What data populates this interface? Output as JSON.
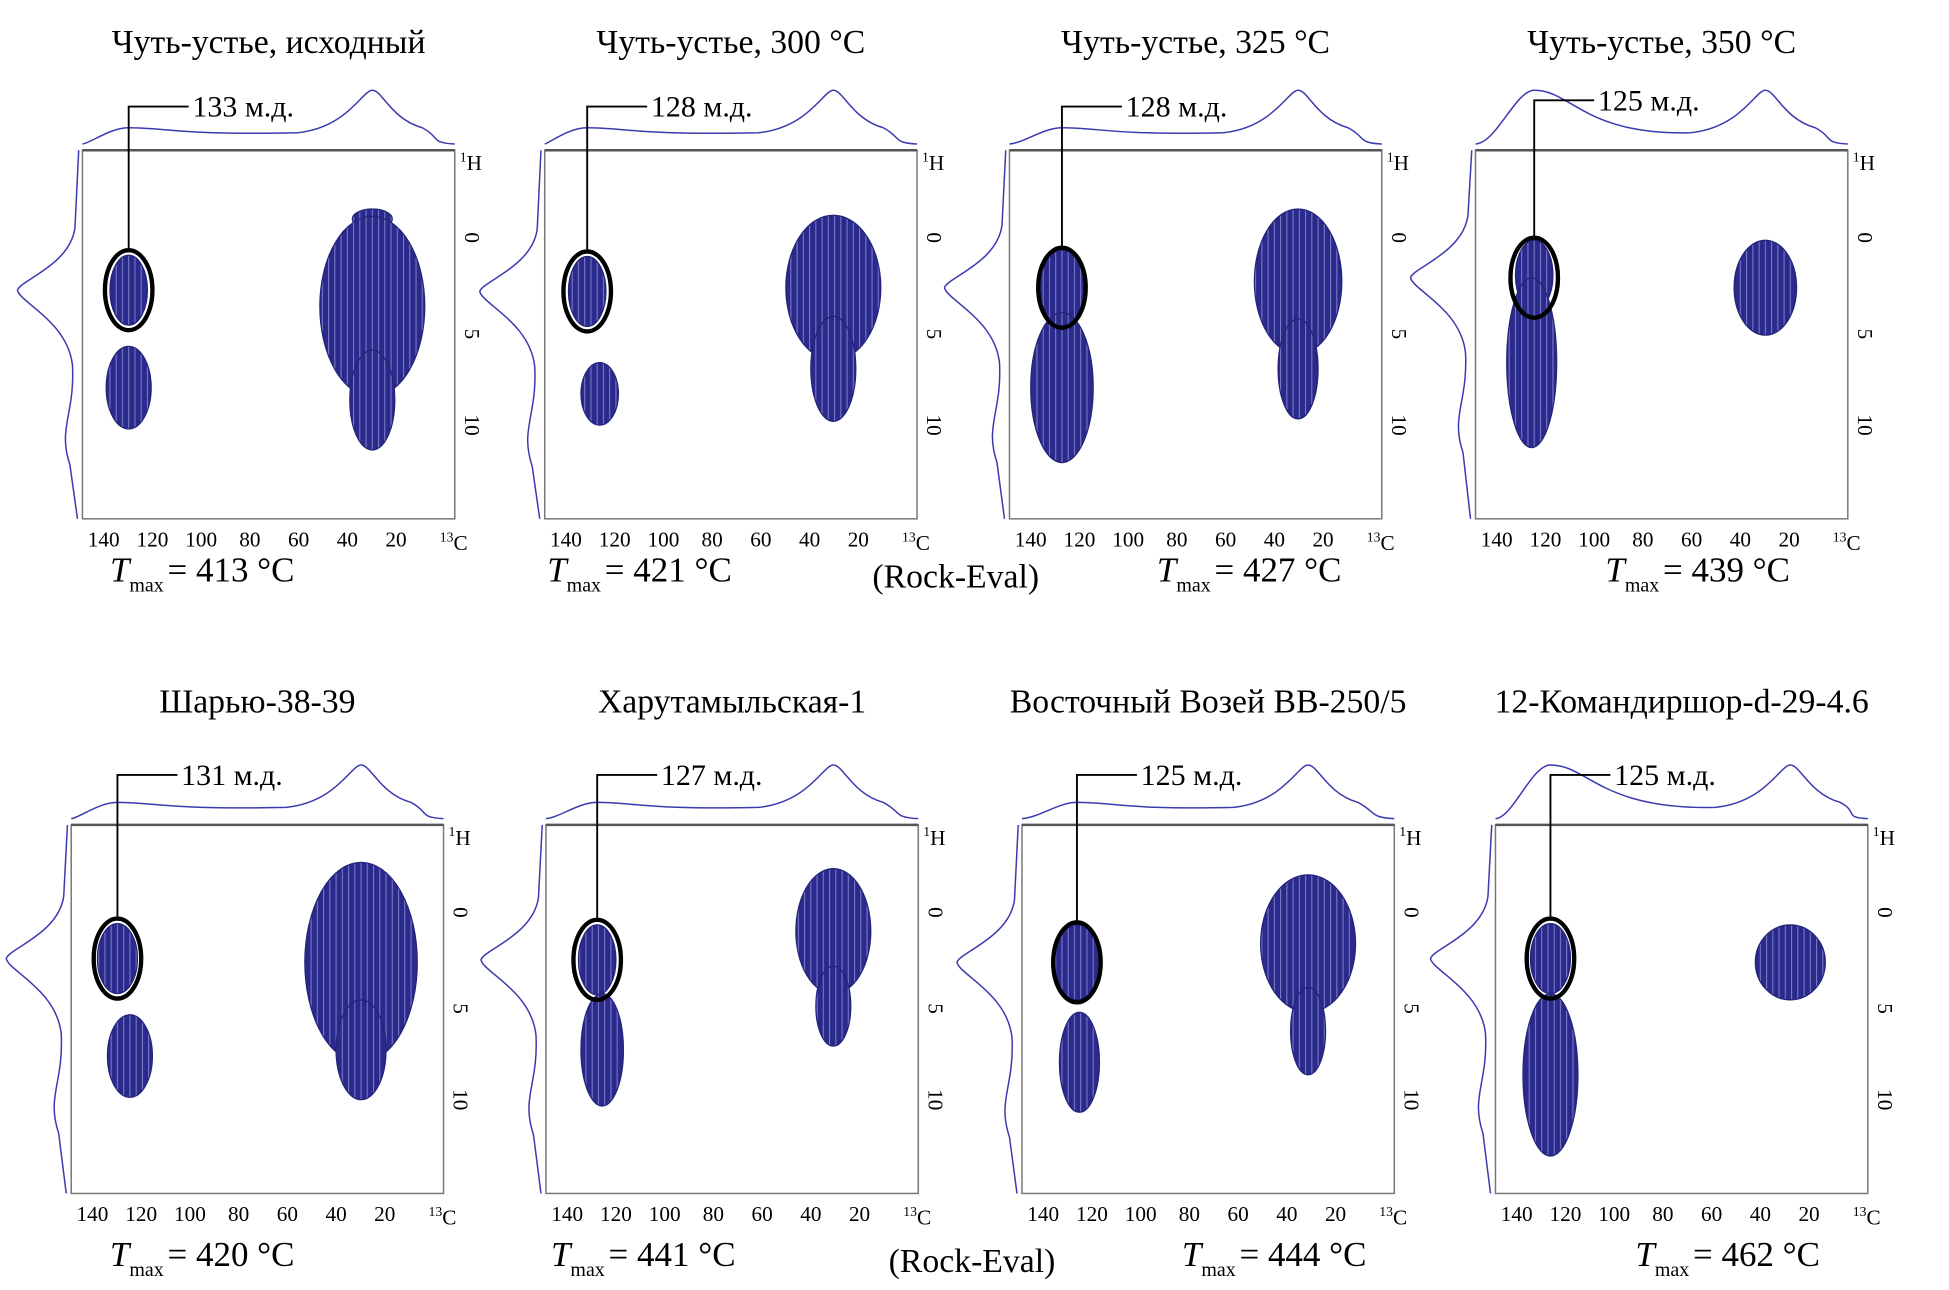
{
  "panels": [
    {
      "title": "Чуть-устье, исходный",
      "peak": "133 м.д.",
      "tmax": {
        "symbol": "T",
        "sub": "max",
        "value": "= 413 °C"
      }
    },
    {
      "title": "Чуть-устье, 300 °C",
      "peak": "128 м.д.",
      "tmax": {
        "symbol": "T",
        "sub": "max",
        "value": "= 421 °C"
      }
    },
    {
      "title": "Чуть-устье, 325 °C",
      "peak": "128 м.д.",
      "tmax": {
        "symbol": "T",
        "sub": "max",
        "value": "= 427 °C"
      }
    },
    {
      "title": "Чуть-устье, 350 °C",
      "peak": "125 м.д.",
      "tmax": {
        "symbol": "T",
        "sub": "max",
        "value": "= 439 °C"
      }
    },
    {
      "title": "Шарью-38-39",
      "peak": "131 м.д.",
      "tmax": {
        "symbol": "T",
        "sub": "max",
        "value": "= 420 °C"
      }
    },
    {
      "title": "Харутамыльская-1",
      "peak": "127 м.д.",
      "tmax": {
        "symbol": "T",
        "sub": "max",
        "value": "= 441 °C"
      }
    },
    {
      "title": "Восточный Возей ВВ-250/5",
      "peak": "125 м.д.",
      "tmax": {
        "symbol": "T",
        "sub": "max",
        "value": "= 444 °C"
      }
    },
    {
      "title": "12-Командиршор-d-29-4.6",
      "peak": "125 м.д.",
      "tmax": {
        "symbol": "T",
        "sub": "max",
        "value": "= 462 °C"
      }
    }
  ],
  "x_ticks": [
    "140",
    "120",
    "100",
    "80",
    "60",
    "40",
    "20"
  ],
  "x_unit": {
    "sup": "13",
    "text": "C"
  },
  "y_ticks": [
    "0",
    "5",
    "10"
  ],
  "y_unit": {
    "sup": "1",
    "text": "H"
  },
  "rock_eval": "(Rock-Eval)"
}
